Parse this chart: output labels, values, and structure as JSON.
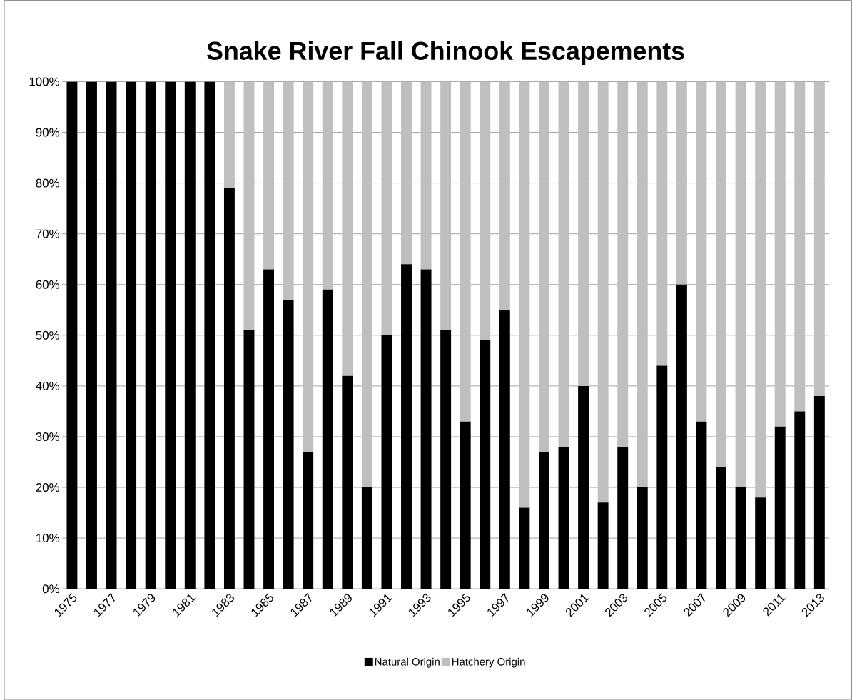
{
  "chart_data": {
    "type": "bar",
    "title": "Snake River Fall Chinook Escapements",
    "stacked": true,
    "categories": [
      "1975",
      null,
      "1977",
      null,
      "1979",
      null,
      "1981",
      null,
      "1983",
      null,
      "1985",
      null,
      "1987",
      null,
      "1989",
      null,
      "1991",
      null,
      "1993",
      null,
      "1995",
      null,
      "1997",
      null,
      "1999",
      null,
      "2001",
      null,
      "2003",
      null,
      "2005",
      null,
      "2007",
      null,
      "2009",
      null,
      "2011",
      null,
      "2013"
    ],
    "series": [
      {
        "name": "Natural Origin",
        "color": "#000000",
        "values": [
          100,
          100,
          100,
          100,
          100,
          100,
          100,
          100,
          79,
          51,
          63,
          57,
          27,
          59,
          42,
          20,
          50,
          64,
          63,
          51,
          33,
          49,
          55,
          16,
          27,
          28,
          40,
          17,
          28,
          20,
          44,
          60,
          33,
          24,
          20,
          18,
          32,
          35,
          38
        ]
      },
      {
        "name": "Hatchery Origin",
        "color": "#bfbfbf",
        "values": [
          0,
          0,
          0,
          0,
          0,
          0,
          0,
          0,
          21,
          49,
          37,
          43,
          73,
          41,
          58,
          80,
          50,
          36,
          37,
          49,
          67,
          51,
          45,
          84,
          73,
          72,
          60,
          83,
          72,
          80,
          56,
          40,
          67,
          76,
          80,
          82,
          68,
          65,
          62
        ]
      }
    ],
    "ylim": [
      0,
      100
    ],
    "yticks": [
      {
        "value": 0,
        "label": "0%"
      },
      {
        "value": 10,
        "label": "10%"
      },
      {
        "value": 20,
        "label": "20%"
      },
      {
        "value": 30,
        "label": "30%"
      },
      {
        "value": 40,
        "label": "40%"
      },
      {
        "value": 50,
        "label": "50%"
      },
      {
        "value": 60,
        "label": "60%"
      },
      {
        "value": 70,
        "label": "70%"
      },
      {
        "value": 80,
        "label": "80%"
      },
      {
        "value": 90,
        "label": "90%"
      },
      {
        "value": 100,
        "label": "100%"
      }
    ],
    "grid": "y",
    "legend": "bottom"
  }
}
